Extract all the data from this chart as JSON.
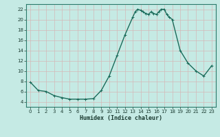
{
  "xlabel": "Humidex (Indice chaleur)",
  "ylabel": "",
  "bg_color": "#c5eae4",
  "grid_color": "#e8c8c8",
  "line_color": "#1a6b5a",
  "marker_color": "#1a6b5a",
  "xlim": [
    -0.5,
    23.5
  ],
  "ylim": [
    3.0,
    23.0
  ],
  "yticks": [
    4,
    6,
    8,
    10,
    12,
    14,
    16,
    18,
    20,
    22
  ],
  "xticks": [
    0,
    1,
    2,
    3,
    4,
    5,
    6,
    7,
    8,
    9,
    10,
    11,
    12,
    13,
    14,
    15,
    16,
    17,
    18,
    19,
    20,
    21,
    22,
    23
  ],
  "x": [
    0,
    1,
    2,
    3,
    4,
    5,
    6,
    7,
    8,
    9,
    10,
    11,
    12,
    13,
    13.3,
    13.6,
    14,
    14.3,
    14.6,
    15,
    15.3,
    15.6,
    16,
    16.3,
    16.6,
    17,
    17.3,
    17.6,
    18,
    19,
    20,
    21,
    22,
    23
  ],
  "y": [
    7.8,
    6.2,
    6.0,
    5.2,
    4.8,
    4.5,
    4.5,
    4.5,
    4.6,
    6.2,
    9.0,
    13.0,
    17.0,
    20.5,
    21.5,
    22.0,
    21.8,
    21.5,
    21.2,
    21.0,
    21.5,
    21.2,
    21.0,
    21.5,
    22.0,
    22.0,
    21.0,
    20.5,
    20.0,
    14.0,
    11.5,
    10.0,
    9.0,
    11.0
  ],
  "marker_size": 3.5,
  "line_width": 1.0
}
